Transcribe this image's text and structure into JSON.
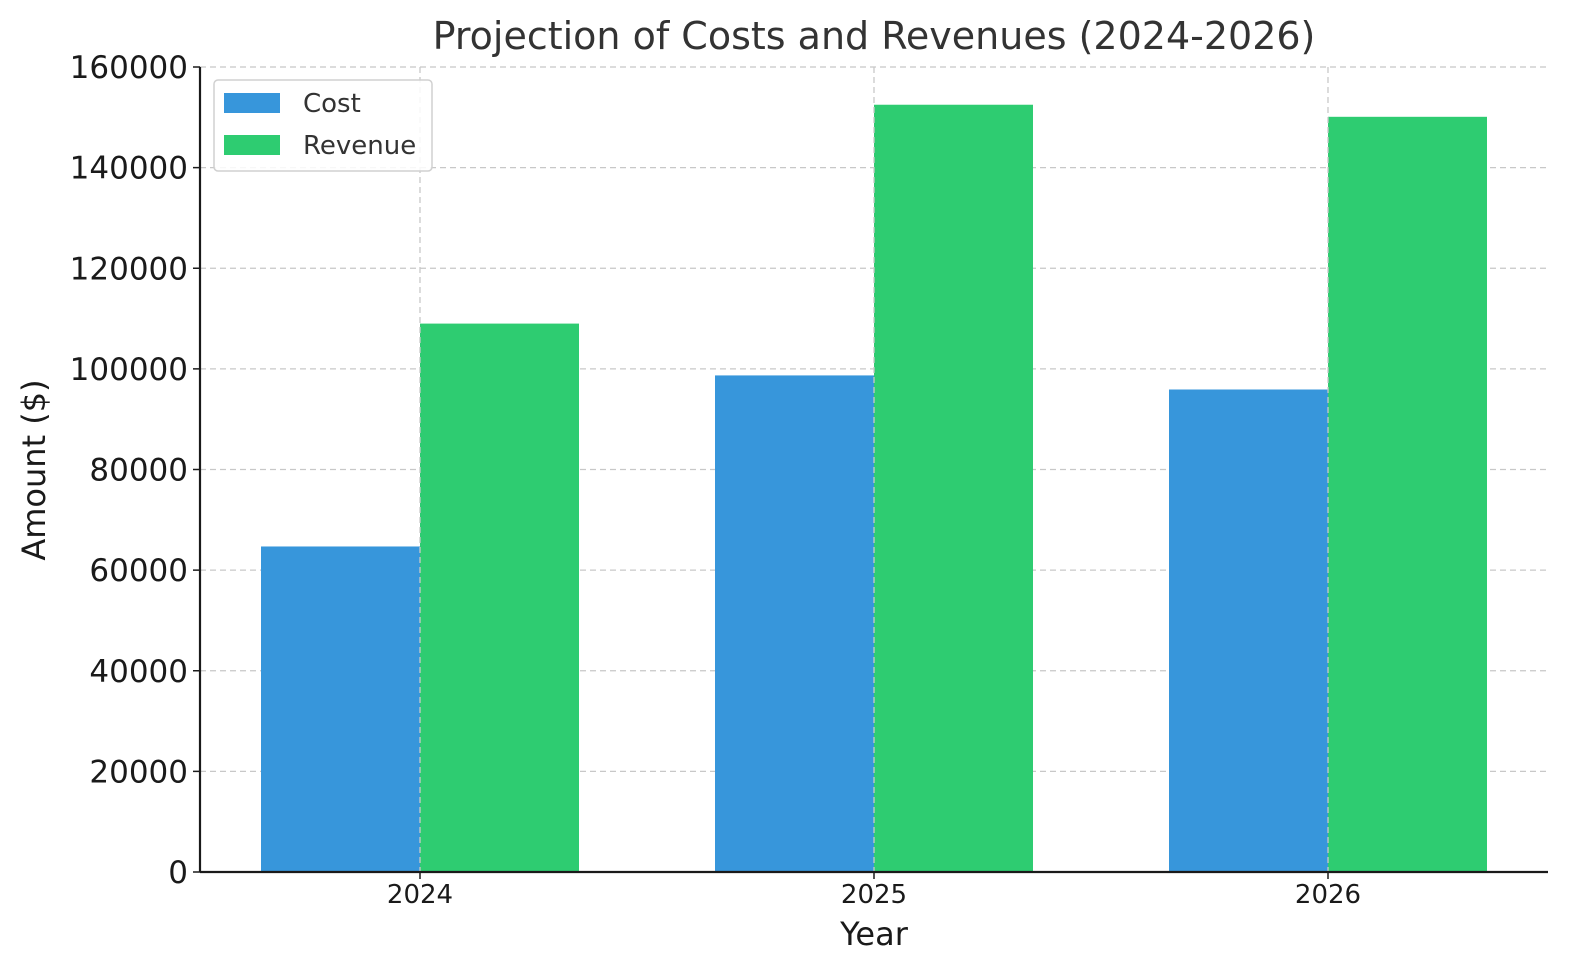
{
  "chart_data": {
    "type": "bar",
    "title": "Projection of Costs and Revenues (2024-2026)",
    "xlabel": "Year",
    "ylabel": "Amount ($)",
    "categories": [
      "2024",
      "2025",
      "2026"
    ],
    "series": [
      {
        "name": "Cost",
        "color": "#3796db",
        "values": [
          64700,
          98700,
          95900
        ]
      },
      {
        "name": "Revenue",
        "color": "#2ecc71",
        "values": [
          109000,
          152500,
          150100
        ]
      }
    ],
    "ylim": [
      0,
      160000
    ],
    "yticks": [
      0,
      20000,
      40000,
      60000,
      80000,
      100000,
      120000,
      140000,
      160000
    ],
    "grid": true,
    "legend_position": "top-left"
  }
}
